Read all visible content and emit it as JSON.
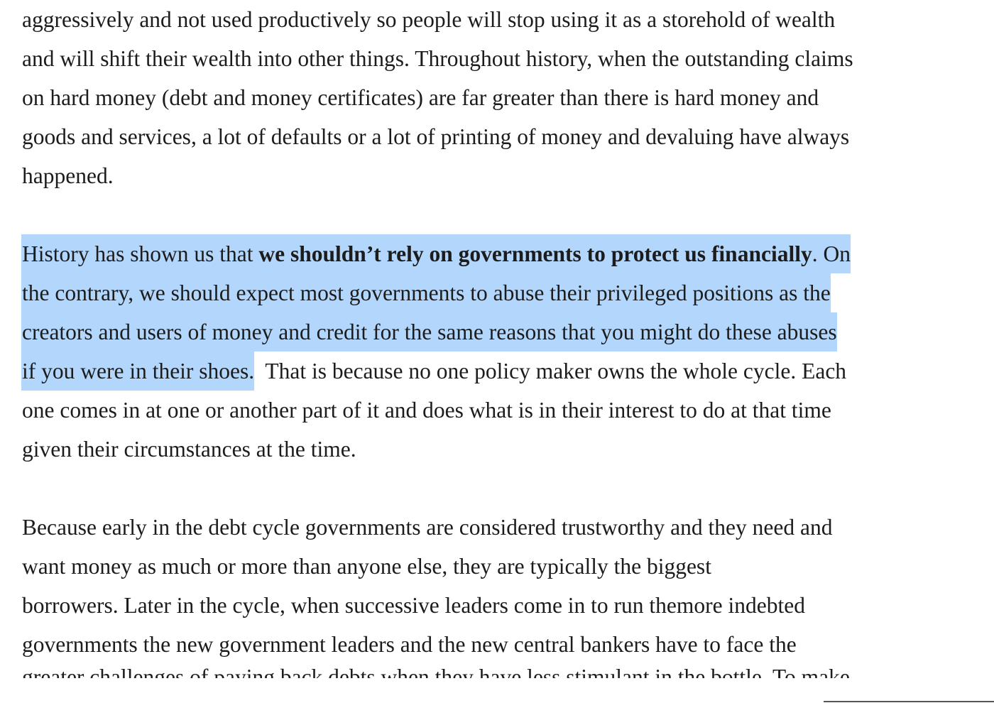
{
  "paragraph_1": {
    "lines": [
      "aggressively and not used productively so people will stop using it as a storehold of wealth",
      "and will shift their wealth into other things. Throughout history, when the outstanding claims",
      "on hard money (debt and money certificates) are far greater than there is hard money and",
      "goods and services, a lot of defaults or a lot of printing of money and devaluing have always",
      "happened."
    ]
  },
  "paragraph_2": {
    "line1_prefix": "History has shown us that ",
    "line1_bold": "we shouldn’t rely on governments to protect us financially",
    "line1_suffix": ". On",
    "line2": "the contrary, we should expect most governments to abuse their privileged positions as the",
    "line3": "creators and users of money and credit for the same reasons that you might do these abuses",
    "line4_highlighted": "if you were in their shoes.",
    "line4_rest": "  That is because no one policy maker owns the whole cycle. Each",
    "line5": "one comes in at one or another part of it and does what is in their interest to do at that time",
    "line6": "given their circumstances at the time."
  },
  "paragraph_3": {
    "lines": [
      "Because early in the debt cycle governments are considered trustworthy and they need and",
      "want money as much or more than anyone else, they are typically the biggest",
      "borrowers. Later in the cycle, when successive leaders come in to run themore indebted",
      "governments the new government leaders and the new central bankers have to face the"
    ],
    "cut_line": "greater challenges of paying back debts when they have less stimulant in the bottle. To make"
  },
  "colors": {
    "text": "#1c1c1c",
    "selection_highlight": "#b3d6fc",
    "background": "#ffffff"
  }
}
